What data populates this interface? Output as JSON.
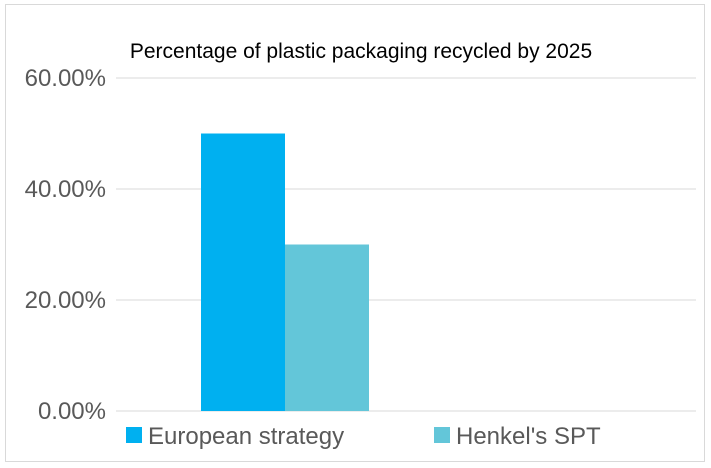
{
  "chart_data": {
    "type": "bar",
    "title": "Percentage of plastic packaging recycled by 2025",
    "xlabel": "",
    "ylabel": "",
    "categories": [
      ""
    ],
    "series": [
      {
        "name": "European strategy",
        "values": [
          0.5
        ],
        "color": "#00b0f0"
      },
      {
        "name": "Henkel's SPT",
        "values": [
          0.3
        ],
        "color": "#63c6d9"
      }
    ],
    "ylim": [
      0,
      0.6
    ],
    "yticks": [
      {
        "value": 0.0,
        "label": "0.00%"
      },
      {
        "value": 0.2,
        "label": "20.00%"
      },
      {
        "value": 0.4,
        "label": "40.00%"
      },
      {
        "value": 0.6,
        "label": "60.00%"
      }
    ],
    "grid": true,
    "legend_position": "bottom",
    "gridline_color": "#d9d9d9"
  }
}
